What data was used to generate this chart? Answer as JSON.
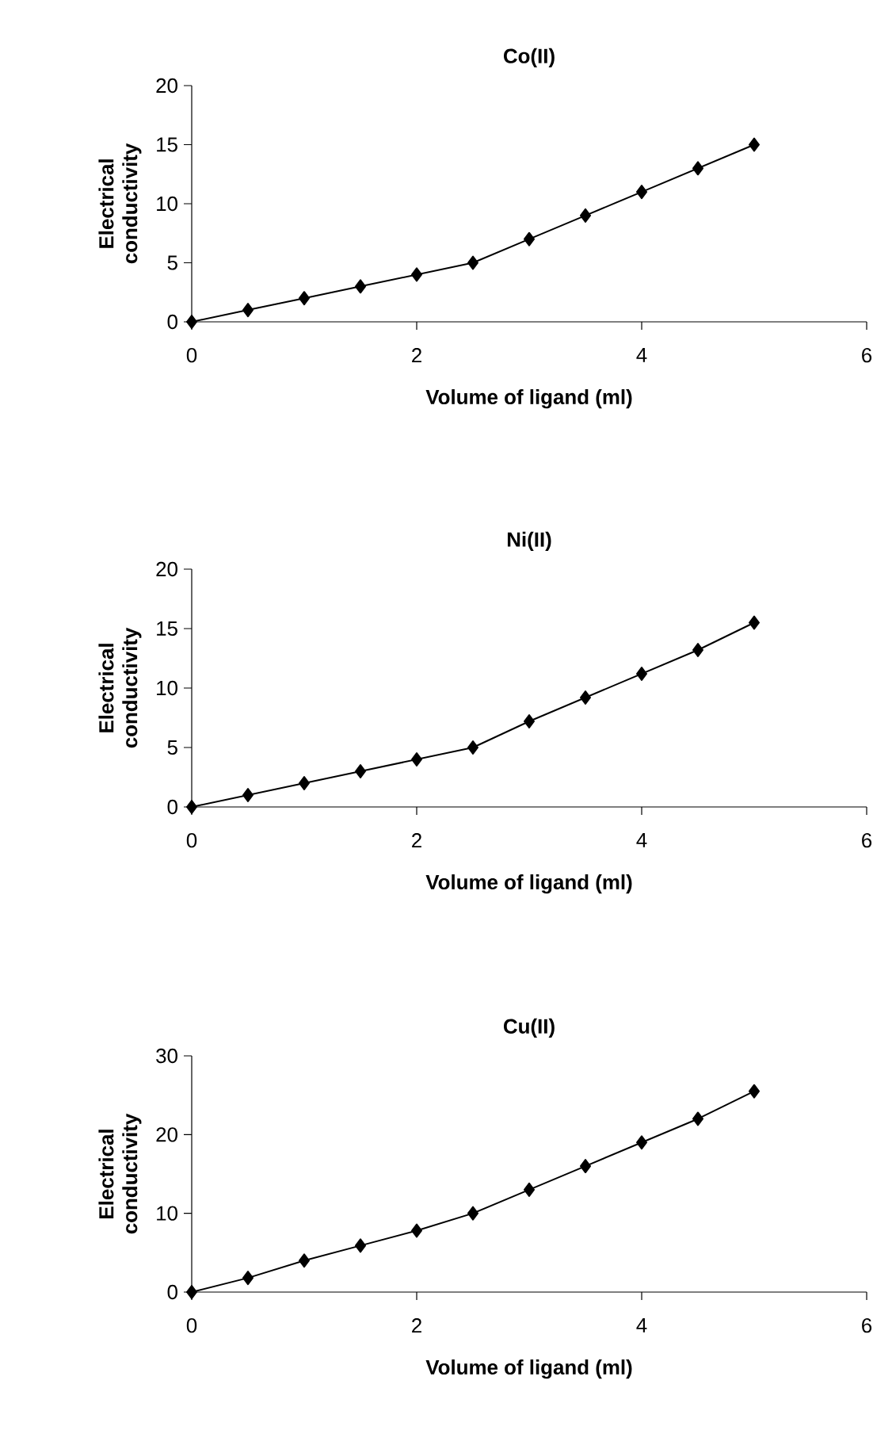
{
  "chart_data": [
    {
      "type": "line",
      "title": "Co(II)",
      "xlabel": "Volume of ligand (ml)",
      "ylabel": "Electrical conductivity",
      "color": "#000000",
      "marker": "diamond",
      "x": [
        0,
        0.5,
        1,
        1.5,
        2,
        2.5,
        3,
        3.5,
        4,
        4.5,
        5
      ],
      "values": [
        0,
        1,
        2,
        3,
        4,
        5,
        7,
        9,
        11,
        13,
        15
      ],
      "xlim": [
        0,
        6
      ],
      "xticks": [
        0,
        2,
        4,
        6
      ],
      "ylim": [
        0,
        20
      ],
      "yticks": [
        0,
        5,
        10,
        15,
        20
      ]
    },
    {
      "type": "line",
      "title": "Ni(II)",
      "xlabel": "Volume of ligand (ml)",
      "ylabel": "Electrical conductivity",
      "color": "#000000",
      "marker": "diamond",
      "x": [
        0,
        0.5,
        1,
        1.5,
        2,
        2.5,
        3,
        3.5,
        4,
        4.5,
        5
      ],
      "values": [
        0,
        1,
        2,
        3,
        4,
        5,
        7.2,
        9.2,
        11.2,
        13.2,
        15.5
      ],
      "xlim": [
        0,
        6
      ],
      "xticks": [
        0,
        2,
        4,
        6
      ],
      "ylim": [
        0,
        20
      ],
      "yticks": [
        0,
        5,
        10,
        15,
        20
      ]
    },
    {
      "type": "line",
      "title": "Cu(II)",
      "xlabel": "Volume of ligand (ml)",
      "ylabel": "Electrical conductivity",
      "color": "#000000",
      "marker": "diamond",
      "x": [
        0,
        0.5,
        1,
        1.5,
        2,
        2.5,
        3,
        3.5,
        4,
        4.5,
        5
      ],
      "values": [
        0,
        1.8,
        4,
        5.9,
        7.8,
        10,
        13,
        16,
        19,
        22,
        25.5
      ],
      "xlim": [
        0,
        6
      ],
      "xticks": [
        0,
        2,
        4,
        6
      ],
      "ylim": [
        0,
        30
      ],
      "yticks": [
        0,
        10,
        20,
        30
      ]
    }
  ]
}
